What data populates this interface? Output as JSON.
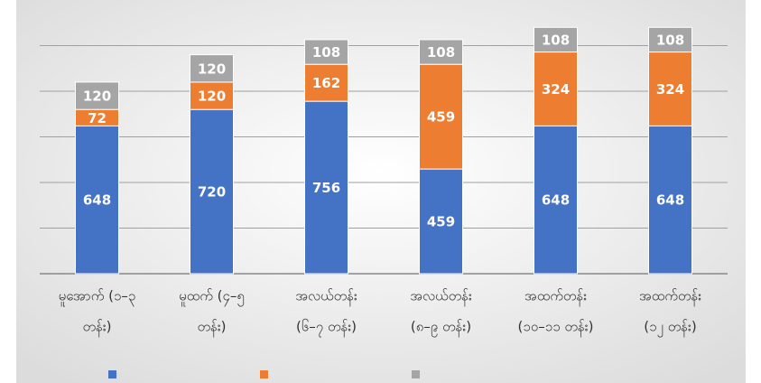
{
  "chart_data": {
    "type": "stacked_bar",
    "categories": [
      [
        "မူအောက် (၁–၃",
        "တန်း)"
      ],
      [
        "မူထက် (၄–၅",
        "တန်း)"
      ],
      [
        "အလယ်တန်း",
        "(၆–၇ တန်း)"
      ],
      [
        "အလယ်တန်း",
        "(၈–၉ တန်း)"
      ],
      [
        "အထက်တန်း",
        "(၁၀–၁၁ တန်း)"
      ],
      [
        "အထက်တန်း",
        "(၁၂ တန်း)"
      ]
    ],
    "series": [
      {
        "color": "#4472c4",
        "values": [
          648,
          720,
          756,
          459,
          648,
          648
        ]
      },
      {
        "color": "#ed7d31",
        "values": [
          72,
          120,
          162,
          459,
          324,
          324
        ]
      },
      {
        "color": "#a5a5a5",
        "values": [
          120,
          120,
          108,
          108,
          108,
          108
        ]
      }
    ],
    "ylim": [
      0,
      1200
    ],
    "yticks": [
      0,
      200,
      400,
      600,
      800,
      1000
    ],
    "grid": true
  }
}
